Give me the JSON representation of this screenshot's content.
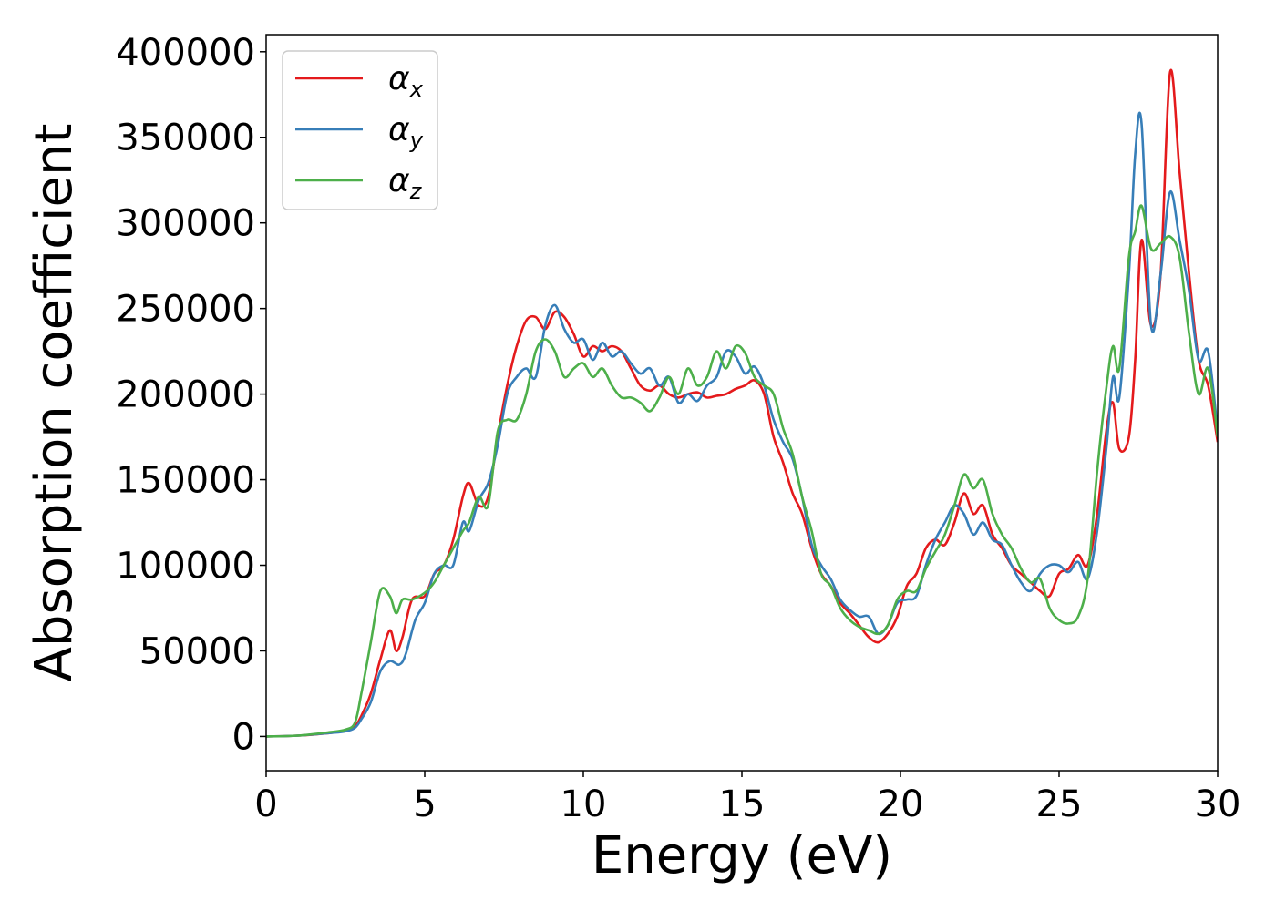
{
  "chart_data": {
    "type": "line",
    "xlabel": "Energy (eV)",
    "ylabel": "Absorption coefficient",
    "xlim": [
      0,
      30
    ],
    "ylim": [
      -20000,
      410000
    ],
    "xticks": [
      0,
      5,
      10,
      15,
      20,
      25,
      30
    ],
    "yticks": [
      0,
      50000,
      100000,
      150000,
      200000,
      250000,
      300000,
      350000,
      400000
    ],
    "grid": false,
    "legend_position": "top-left",
    "series": [
      {
        "name": "α",
        "subscript": "x",
        "color": "#e41a1c",
        "x": [
          0,
          1,
          2,
          2.5,
          2.8,
          3.0,
          3.3,
          3.6,
          3.9,
          4.1,
          4.3,
          4.6,
          5.0,
          5.3,
          5.6,
          5.9,
          6.2,
          6.4,
          6.7,
          7.0,
          7.3,
          7.6,
          7.9,
          8.2,
          8.5,
          8.8,
          9.1,
          9.4,
          9.7,
          10.0,
          10.3,
          10.6,
          10.9,
          11.2,
          11.5,
          11.8,
          12.1,
          12.4,
          12.7,
          13.0,
          13.3,
          13.6,
          13.9,
          14.2,
          14.5,
          14.8,
          15.1,
          15.4,
          15.7,
          16.0,
          16.3,
          16.6,
          16.9,
          17.2,
          17.5,
          17.8,
          18.1,
          18.4,
          18.7,
          19.0,
          19.3,
          19.6,
          19.9,
          20.2,
          20.5,
          20.8,
          21.1,
          21.4,
          21.7,
          22.0,
          22.3,
          22.6,
          22.9,
          23.2,
          23.5,
          23.8,
          24.1,
          24.4,
          24.7,
          25.0,
          25.3,
          25.6,
          25.9,
          26.2,
          26.5,
          26.7,
          26.9,
          27.2,
          27.4,
          27.6,
          27.9,
          28.2,
          28.5,
          28.8,
          29.1,
          29.4,
          29.7,
          30.0
        ],
        "y": [
          0,
          500,
          2000,
          3500,
          6000,
          12000,
          25000,
          45000,
          62000,
          50000,
          58000,
          80000,
          82000,
          95000,
          100000,
          115000,
          140000,
          148000,
          135000,
          140000,
          175000,
          205000,
          228000,
          243000,
          245000,
          238000,
          248000,
          245000,
          235000,
          222000,
          228000,
          225000,
          228000,
          225000,
          215000,
          205000,
          202000,
          205000,
          200000,
          198000,
          200000,
          201000,
          198000,
          199000,
          200000,
          203000,
          205000,
          208000,
          200000,
          175000,
          160000,
          142000,
          130000,
          110000,
          95000,
          88000,
          78000,
          72000,
          65000,
          58000,
          55000,
          60000,
          70000,
          88000,
          95000,
          110000,
          115000,
          112000,
          125000,
          142000,
          130000,
          135000,
          118000,
          110000,
          100000,
          95000,
          90000,
          85000,
          82000,
          95000,
          98000,
          106000,
          100000,
          130000,
          180000,
          195000,
          168000,
          175000,
          220000,
          290000,
          240000,
          270000,
          388000,
          330000,
          270000,
          220000,
          205000,
          172000
        ]
      },
      {
        "name": "α",
        "subscript": "y",
        "color": "#377eb8",
        "x": [
          0,
          1,
          2,
          2.5,
          2.8,
          3.0,
          3.3,
          3.6,
          3.9,
          4.2,
          4.4,
          4.7,
          5.0,
          5.3,
          5.6,
          5.9,
          6.2,
          6.4,
          6.7,
          7.0,
          7.3,
          7.6,
          7.9,
          8.2,
          8.5,
          8.8,
          9.1,
          9.4,
          9.7,
          10.0,
          10.3,
          10.6,
          10.9,
          11.2,
          11.5,
          11.8,
          12.1,
          12.4,
          12.7,
          13.0,
          13.3,
          13.6,
          13.9,
          14.2,
          14.5,
          14.8,
          15.1,
          15.4,
          15.7,
          16.0,
          16.3,
          16.6,
          16.9,
          17.2,
          17.5,
          17.8,
          18.1,
          18.4,
          18.7,
          19.0,
          19.3,
          19.6,
          19.9,
          20.2,
          20.5,
          20.8,
          21.1,
          21.4,
          21.7,
          22.0,
          22.3,
          22.6,
          22.9,
          23.2,
          23.5,
          23.8,
          24.1,
          24.4,
          24.7,
          25.0,
          25.3,
          25.6,
          25.9,
          26.2,
          26.5,
          26.7,
          26.9,
          27.2,
          27.4,
          27.6,
          27.9,
          28.2,
          28.5,
          28.8,
          29.1,
          29.4,
          29.7,
          30.0
        ],
        "y": [
          0,
          500,
          2000,
          3000,
          5000,
          10000,
          20000,
          38000,
          44000,
          42000,
          48000,
          68000,
          78000,
          95000,
          100000,
          100000,
          125000,
          120000,
          138000,
          148000,
          170000,
          200000,
          210000,
          215000,
          210000,
          240000,
          252000,
          238000,
          230000,
          232000,
          220000,
          230000,
          222000,
          225000,
          218000,
          212000,
          215000,
          205000,
          210000,
          195000,
          200000,
          196000,
          205000,
          210000,
          225000,
          222000,
          212000,
          216000,
          205000,
          185000,
          172000,
          162000,
          140000,
          112000,
          100000,
          92000,
          80000,
          74000,
          70000,
          70000,
          60000,
          65000,
          78000,
          80000,
          82000,
          100000,
          115000,
          125000,
          135000,
          130000,
          118000,
          125000,
          115000,
          112000,
          100000,
          90000,
          85000,
          95000,
          100000,
          100000,
          96000,
          102000,
          92000,
          120000,
          170000,
          210000,
          198000,
          270000,
          340000,
          358000,
          240000,
          270000,
          318000,
          290000,
          260000,
          220000,
          225000,
          178000
        ]
      },
      {
        "name": "α",
        "subscript": "z",
        "color": "#4daf4a",
        "x": [
          0,
          1,
          2,
          2.5,
          2.8,
          3.0,
          3.3,
          3.6,
          3.9,
          4.1,
          4.3,
          4.6,
          5.0,
          5.3,
          5.6,
          5.9,
          6.2,
          6.4,
          6.7,
          7.0,
          7.3,
          7.6,
          7.9,
          8.2,
          8.5,
          8.8,
          9.1,
          9.4,
          9.7,
          10.0,
          10.3,
          10.6,
          10.9,
          11.2,
          11.5,
          11.8,
          12.1,
          12.4,
          12.7,
          13.0,
          13.3,
          13.6,
          13.9,
          14.2,
          14.5,
          14.8,
          15.1,
          15.4,
          15.7,
          16.0,
          16.3,
          16.6,
          16.9,
          17.2,
          17.5,
          17.8,
          18.1,
          18.4,
          18.7,
          19.0,
          19.3,
          19.6,
          19.9,
          20.2,
          20.5,
          20.8,
          21.1,
          21.4,
          21.7,
          22.0,
          22.3,
          22.6,
          22.9,
          23.2,
          23.5,
          23.8,
          24.1,
          24.4,
          24.7,
          25.0,
          25.3,
          25.6,
          25.9,
          26.2,
          26.5,
          26.7,
          26.9,
          27.2,
          27.4,
          27.6,
          27.9,
          28.2,
          28.5,
          28.8,
          29.1,
          29.4,
          29.7,
          30.0
        ],
        "y": [
          0,
          500,
          2500,
          4000,
          8000,
          25000,
          55000,
          85000,
          82000,
          72000,
          80000,
          80000,
          84000,
          90000,
          100000,
          110000,
          120000,
          125000,
          140000,
          135000,
          178000,
          185000,
          185000,
          200000,
          225000,
          232000,
          225000,
          210000,
          215000,
          218000,
          210000,
          215000,
          205000,
          198000,
          198000,
          195000,
          190000,
          198000,
          210000,
          200000,
          215000,
          205000,
          210000,
          225000,
          215000,
          228000,
          224000,
          210000,
          205000,
          200000,
          180000,
          165000,
          140000,
          120000,
          95000,
          88000,
          75000,
          68000,
          64000,
          62000,
          60000,
          65000,
          80000,
          85000,
          85000,
          98000,
          108000,
          118000,
          135000,
          153000,
          145000,
          150000,
          130000,
          118000,
          110000,
          98000,
          90000,
          92000,
          75000,
          68000,
          66000,
          70000,
          92000,
          155000,
          205000,
          228000,
          215000,
          280000,
          295000,
          310000,
          285000,
          288000,
          292000,
          280000,
          235000,
          200000,
          215000,
          175000
        ]
      }
    ]
  }
}
